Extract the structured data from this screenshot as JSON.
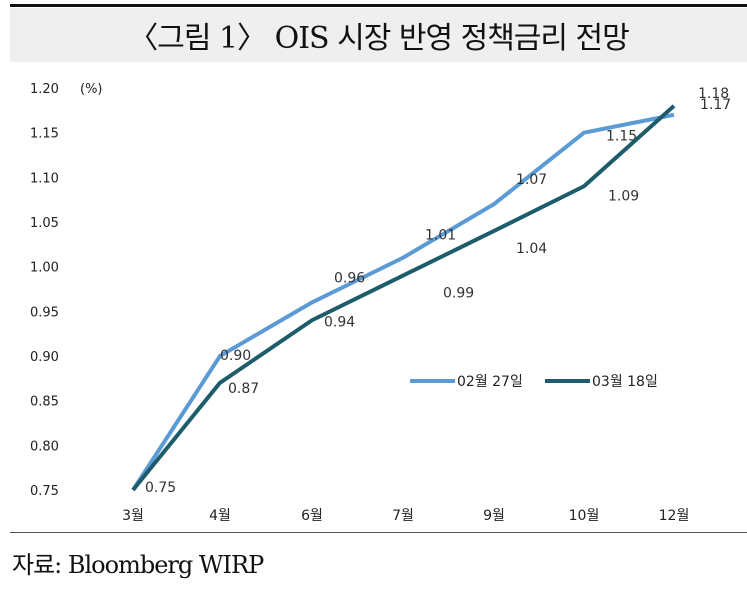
{
  "title": "〈그림 1〉 OIS 시장 반영 정책금리 전망",
  "source": "자료: Bloomberg WIRP",
  "chart_data": {
    "type": "line",
    "title": "〈그림 1〉 OIS 시장 반영 정책금리 전망",
    "ylabel": "(%)",
    "xlabel": "",
    "ylim": [
      0.75,
      1.2
    ],
    "yticks": [
      "1.20",
      "1.15",
      "1.10",
      "1.05",
      "1.00",
      "0.95",
      "0.90",
      "0.85",
      "0.80",
      "0.75"
    ],
    "categories": [
      "3월",
      "4월",
      "6월",
      "7월",
      "9월",
      "10월",
      "12월"
    ],
    "legend": "center-right",
    "grid": false,
    "series": [
      {
        "name": "02월 27일",
        "color": "#5b9bd5",
        "values": [
          0.75,
          0.9,
          0.96,
          1.01,
          1.07,
          1.15,
          1.17
        ],
        "labels": [
          "",
          "0.90",
          "0.96",
          "1.01",
          "1.07",
          "1.15",
          "1.17"
        ]
      },
      {
        "name": "03월 18일",
        "color": "#1d5c6b",
        "values": [
          0.75,
          0.87,
          0.94,
          0.99,
          1.04,
          1.09,
          1.18
        ],
        "labels": [
          "0.75",
          "0.87",
          "0.94",
          "0.99",
          "1.04",
          "1.09",
          "1.18"
        ]
      }
    ]
  }
}
